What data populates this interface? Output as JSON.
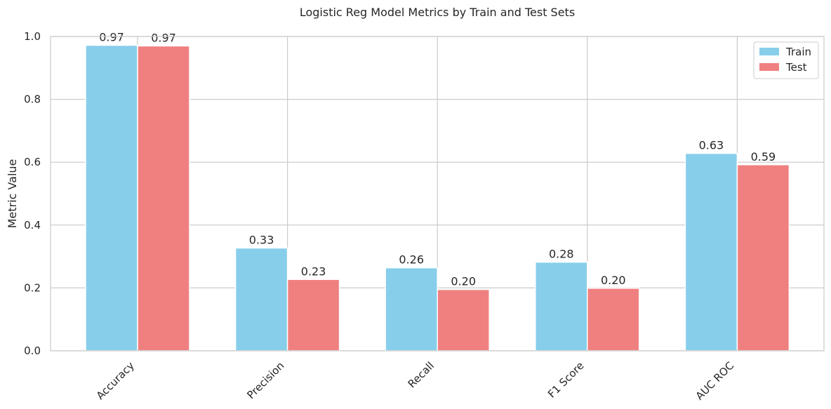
{
  "chart_data": {
    "type": "bar",
    "title": "Logistic Reg Model Metrics by Train and Test Sets",
    "xlabel": "",
    "ylabel": "Metric Value",
    "categories": [
      "Accuracy",
      "Precision",
      "Recall",
      "F1 Score",
      "AUC ROC"
    ],
    "series": [
      {
        "name": "Train",
        "color": "#87ceeb",
        "values": [
          0.972,
          0.327,
          0.264,
          0.282,
          0.628
        ],
        "labels": [
          "0.97",
          "0.33",
          "0.26",
          "0.28",
          "0.63"
        ]
      },
      {
        "name": "Test",
        "color": "#f08080",
        "values": [
          0.97,
          0.227,
          0.195,
          0.199,
          0.592
        ],
        "labels": [
          "0.97",
          "0.23",
          "0.20",
          "0.20",
          "0.59"
        ]
      }
    ],
    "ylim": [
      0,
      1.0
    ],
    "yticks": [
      "0.0",
      "0.2",
      "0.4",
      "0.6",
      "0.8",
      "1.0"
    ],
    "grid": true,
    "legend_position": "top-right"
  }
}
